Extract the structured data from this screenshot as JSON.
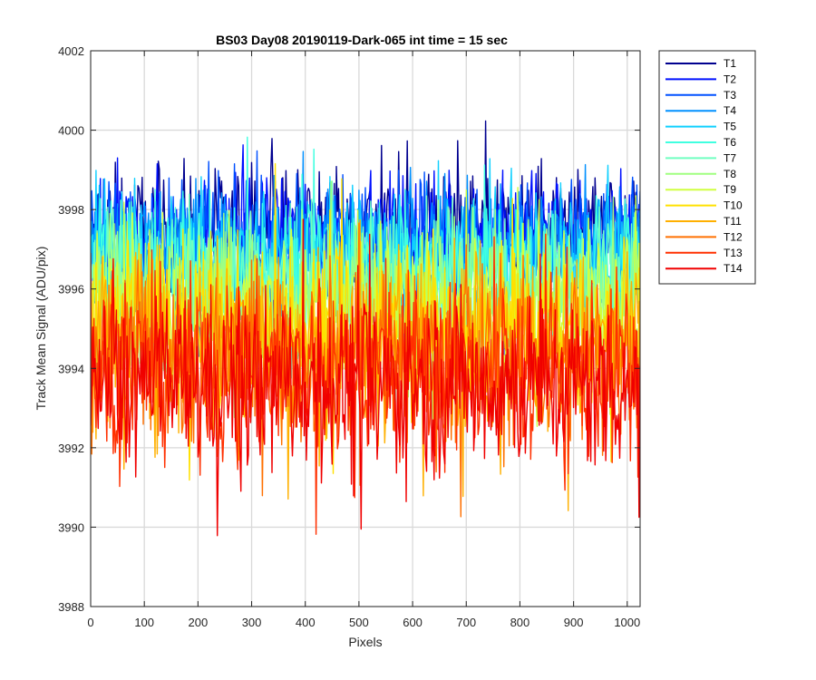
{
  "chart_data": {
    "type": "line",
    "title": "BS03 Day08 20190119-Dark-065 int time = 15 sec",
    "xlabel": "Pixels",
    "ylabel": "Track Mean Signal (ADU/pix)",
    "xlim": [
      0,
      1024
    ],
    "ylim": [
      3988,
      4002
    ],
    "xticks": [
      0,
      100,
      200,
      300,
      400,
      500,
      600,
      700,
      800,
      900,
      1000
    ],
    "yticks": [
      3988,
      3990,
      3992,
      3994,
      3996,
      3998,
      4000,
      4002
    ],
    "grid": true,
    "legend_position": "outside-top-right",
    "series": [
      {
        "name": "T1",
        "color": "#00008f",
        "mean": 3997.5,
        "amp": 1.0
      },
      {
        "name": "T2",
        "color": "#0010ff",
        "mean": 3997.3,
        "amp": 1.0
      },
      {
        "name": "T3",
        "color": "#0050ff",
        "mean": 3997.2,
        "amp": 1.0
      },
      {
        "name": "T4",
        "color": "#0090ff",
        "mean": 3997.0,
        "amp": 1.1
      },
      {
        "name": "T5",
        "color": "#10d0ff",
        "mean": 3996.8,
        "amp": 1.1
      },
      {
        "name": "T6",
        "color": "#40ffe0",
        "mean": 3996.5,
        "amp": 1.2
      },
      {
        "name": "T7",
        "color": "#70ffc0",
        "mean": 3996.2,
        "amp": 1.2
      },
      {
        "name": "T8",
        "color": "#a0ff80",
        "mean": 3995.8,
        "amp": 1.3
      },
      {
        "name": "T9",
        "color": "#d0ff40",
        "mean": 3995.4,
        "amp": 1.4
      },
      {
        "name": "T10",
        "color": "#ffe000",
        "mean": 3995.0,
        "amp": 1.5
      },
      {
        "name": "T11",
        "color": "#ffb000",
        "mean": 3994.6,
        "amp": 1.5
      },
      {
        "name": "T12",
        "color": "#ff7000",
        "mean": 3994.3,
        "amp": 1.5
      },
      {
        "name": "T13",
        "color": "#ff3000",
        "mean": 3994.0,
        "amp": 1.5
      },
      {
        "name": "T14",
        "color": "#f00000",
        "mean": 3993.6,
        "amp": 1.5
      }
    ]
  }
}
